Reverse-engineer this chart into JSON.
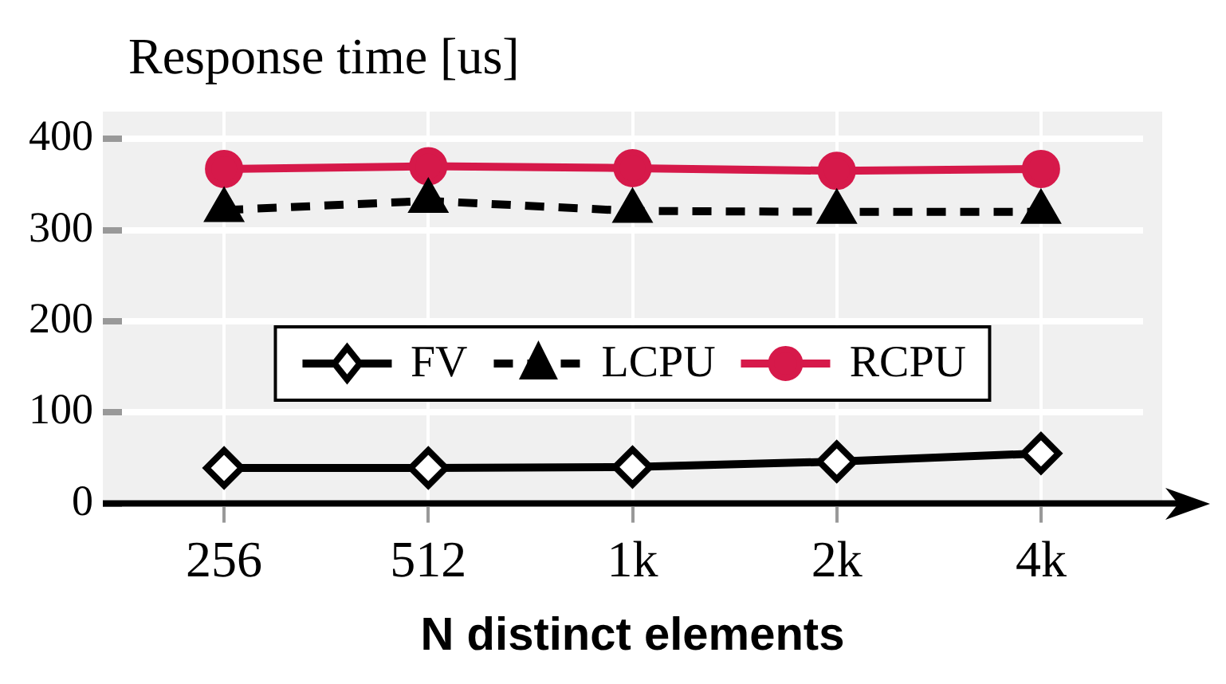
{
  "chart_data": {
    "type": "line",
    "title": "Response time [us]",
    "xlabel": "N distinct elements",
    "categories": [
      "256",
      "512",
      "1k",
      "2k",
      "4k"
    ],
    "series": [
      {
        "name": "FV",
        "color": "#000000",
        "values": [
          39,
          39,
          40,
          46,
          55
        ],
        "marker": "diamond",
        "line_style": "solid"
      },
      {
        "name": "LCPU",
        "color": "#000000",
        "values": [
          322,
          332,
          321,
          320,
          320
        ],
        "marker": "triangle",
        "line_style": "dashed"
      },
      {
        "name": "RCPU",
        "color": "#d6194a",
        "values": [
          367,
          370,
          368,
          365,
          367
        ],
        "marker": "circle",
        "line_style": "solid"
      }
    ],
    "ylim": [
      0,
      430
    ],
    "yticks": [
      0,
      100,
      200,
      300,
      400
    ],
    "grid": true,
    "legend": "center"
  }
}
